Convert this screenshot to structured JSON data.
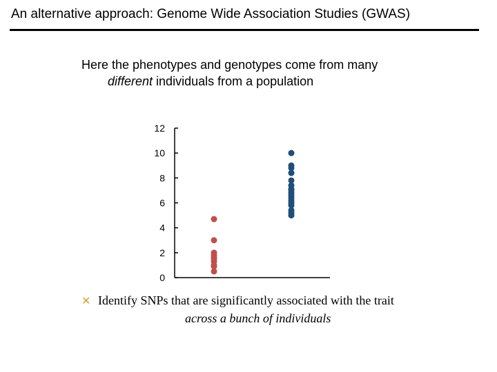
{
  "slide": {
    "title": "An alternative approach:  Genome Wide Association Studies (GWAS)",
    "intro_line1": "Here the phenotypes and genotypes come from many",
    "intro_line2_em": "different",
    "intro_line2_rest": " individuals from a population",
    "bullet_icon": "x-mark-bullet-icon",
    "bullet_line1": "Identify SNPs that are significantly associated with the trait",
    "bullet_line2": "across a bunch of individuals"
  },
  "chart_data": {
    "type": "scatter",
    "title": "",
    "xlabel": "",
    "ylabel": "",
    "ylim": [
      0,
      12
    ],
    "yticks": [
      0,
      2,
      4,
      6,
      8,
      10,
      12
    ],
    "grid": false,
    "series": [
      {
        "x": 1,
        "values": [
          4.7,
          3.0,
          2.0,
          1.8,
          1.6,
          1.5,
          1.3,
          1.0,
          0.9,
          0.5
        ],
        "color": "#c0504d"
      },
      {
        "x": 2,
        "values": [
          10.0,
          9.0,
          8.8,
          8.4,
          7.8,
          7.4,
          7.1,
          7.0,
          6.8,
          6.6,
          6.4,
          6.2,
          6.0,
          5.8,
          5.4,
          5.2,
          5.0
        ],
        "color": "#1f4e79"
      }
    ]
  }
}
